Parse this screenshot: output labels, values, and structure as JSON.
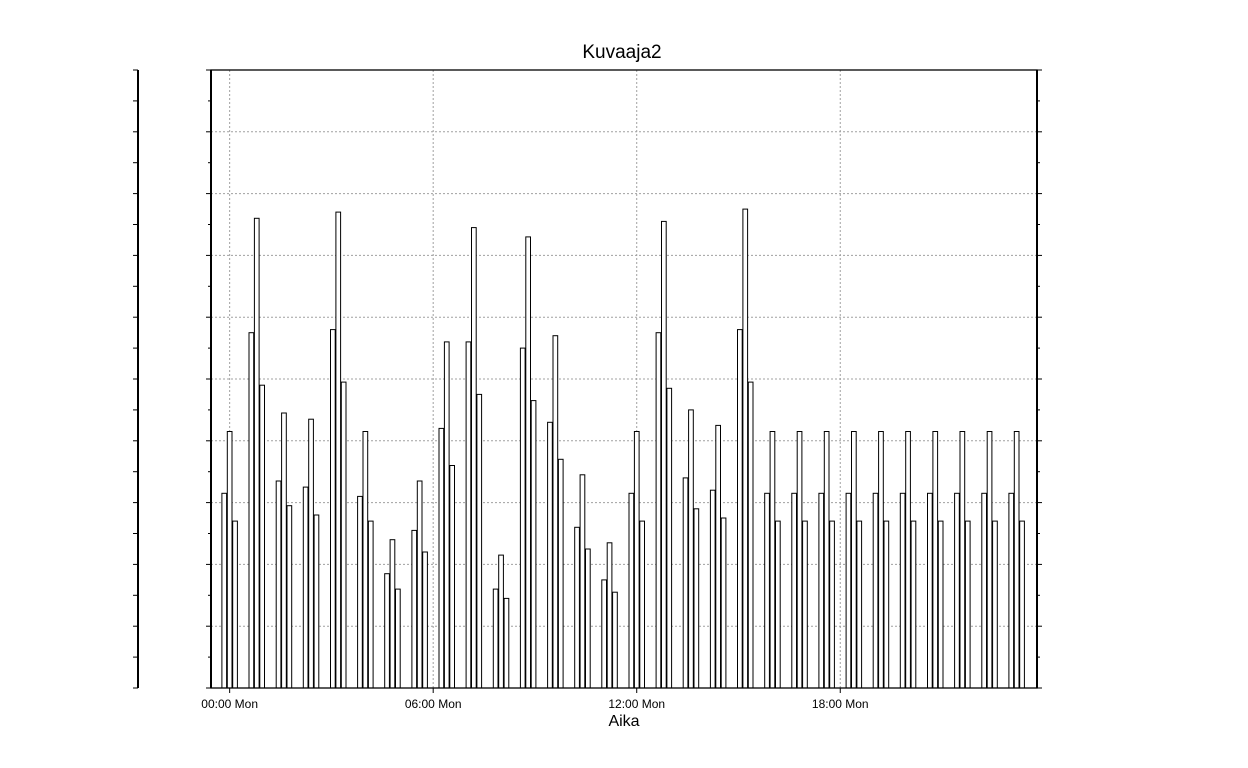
{
  "chart_data": {
    "type": "bar",
    "title": "Kuvaaja2",
    "xlabel": "Aika",
    "ylabel": "",
    "x_unit": "hours",
    "xlim": [
      -0.55,
      23.8
    ],
    "ylim": [
      0,
      10
    ],
    "grid": true,
    "x_ticks": [
      {
        "x": 0,
        "label": "00:00 Mon"
      },
      {
        "x": 6,
        "label": "06:00 Mon"
      },
      {
        "x": 12,
        "label": "12:00 Mon"
      },
      {
        "x": 18,
        "label": "18:00 Mon"
      }
    ],
    "groups": [
      {
        "x": 0.0,
        "values": [
          3.15,
          4.15,
          2.7
        ]
      },
      {
        "x": 0.8,
        "values": [
          5.75,
          7.6,
          4.9
        ]
      },
      {
        "x": 1.6,
        "values": [
          3.35,
          4.45,
          2.95
        ]
      },
      {
        "x": 2.4,
        "values": [
          3.25,
          4.35,
          2.8
        ]
      },
      {
        "x": 3.2,
        "values": [
          5.8,
          7.7,
          4.95
        ]
      },
      {
        "x": 4.0,
        "values": [
          3.1,
          4.15,
          2.7
        ]
      },
      {
        "x": 4.8,
        "values": [
          1.85,
          2.4,
          1.6
        ]
      },
      {
        "x": 5.6,
        "values": [
          2.55,
          3.35,
          2.2
        ]
      },
      {
        "x": 6.4,
        "values": [
          4.2,
          5.6,
          3.6
        ]
      },
      {
        "x": 7.2,
        "values": [
          5.6,
          7.45,
          4.75
        ]
      },
      {
        "x": 8.0,
        "values": [
          1.6,
          2.15,
          1.45
        ]
      },
      {
        "x": 8.8,
        "values": [
          5.5,
          7.3,
          4.65
        ]
      },
      {
        "x": 9.6,
        "values": [
          4.3,
          5.7,
          3.7
        ]
      },
      {
        "x": 10.4,
        "values": [
          2.6,
          3.45,
          2.25
        ]
      },
      {
        "x": 11.2,
        "values": [
          1.75,
          2.35,
          1.55
        ]
      },
      {
        "x": 12.0,
        "values": [
          3.15,
          4.15,
          2.7
        ]
      },
      {
        "x": 12.8,
        "values": [
          5.75,
          7.55,
          4.85
        ]
      },
      {
        "x": 13.6,
        "values": [
          3.4,
          4.5,
          2.9
        ]
      },
      {
        "x": 14.4,
        "values": [
          3.2,
          4.25,
          2.75
        ]
      },
      {
        "x": 15.2,
        "values": [
          5.8,
          7.75,
          4.95
        ]
      },
      {
        "x": 16.0,
        "values": [
          3.15,
          4.15,
          2.7
        ]
      },
      {
        "x": 16.8,
        "values": [
          3.15,
          4.15,
          2.7
        ]
      },
      {
        "x": 17.6,
        "values": [
          3.15,
          4.15,
          2.7
        ]
      },
      {
        "x": 18.4,
        "values": [
          3.15,
          4.15,
          2.7
        ]
      },
      {
        "x": 19.2,
        "values": [
          3.15,
          4.15,
          2.7
        ]
      },
      {
        "x": 20.0,
        "values": [
          3.15,
          4.15,
          2.7
        ]
      },
      {
        "x": 20.8,
        "values": [
          3.15,
          4.15,
          2.7
        ]
      },
      {
        "x": 21.6,
        "values": [
          3.15,
          4.15,
          2.7
        ]
      },
      {
        "x": 22.4,
        "values": [
          3.15,
          4.15,
          2.7
        ]
      },
      {
        "x": 23.2,
        "values": [
          3.15,
          4.15,
          2.7
        ]
      }
    ]
  }
}
